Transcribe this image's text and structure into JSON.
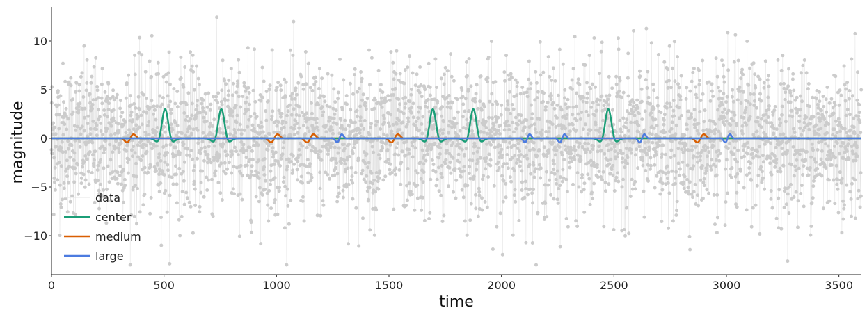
{
  "chart_data": {
    "type": "line",
    "xlabel": "time",
    "ylabel": "magnitude",
    "xlim": [
      0,
      3600
    ],
    "ylim": [
      -14,
      13.5
    ],
    "xticks": [
      0,
      500,
      1000,
      1500,
      2000,
      2500,
      3000,
      3500
    ],
    "xtick_labels": [
      "0",
      "500",
      "1000",
      "1500",
      "2000",
      "2500",
      "3000",
      "3500"
    ],
    "yticks": [
      -10,
      -5,
      0,
      5,
      10
    ],
    "ytick_labels": [
      "−10",
      "−5",
      "0",
      "5",
      "10"
    ],
    "grid": false,
    "legend_position": "lower-left",
    "noise": {
      "name": "data",
      "color": "#cccccc",
      "n_points": 3600,
      "std": 3.8,
      "note_range": [
        -13,
        12.5
      ]
    },
    "series": [
      {
        "name": "center",
        "color": "#1b9e77",
        "kernel": "mexican-hat",
        "amplitude": 3.0,
        "width": 18,
        "centers": [
          505,
          755,
          1695,
          1875,
          2475
        ]
      },
      {
        "name": "medium",
        "color": "#d95f02",
        "kernel": "wavelet",
        "amplitude": 0.6,
        "width": 14,
        "centers": [
          350,
          990,
          1150,
          1525,
          2885
        ]
      },
      {
        "name": "large",
        "color": "#4c7be0",
        "kernel": "wavelet",
        "amplitude": 0.6,
        "width": 10,
        "centers": [
          1280,
          2115,
          2270,
          2625,
          3005
        ]
      }
    ]
  }
}
